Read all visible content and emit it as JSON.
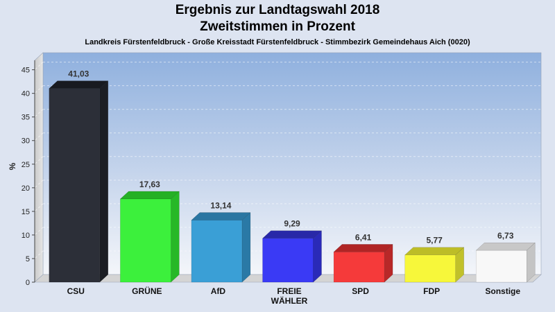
{
  "header": {
    "title": "Ergebnis zur Landtagswahl 2018",
    "subtitle": "Zweitstimmen in Prozent",
    "region": "Landkreis Fürstenfeldbruck - Große Kreisstadt Fürstenfeldbruck - Stimmbezirk Gemeindehaus Aich (0020)"
  },
  "chart_data": {
    "type": "bar",
    "title": "Ergebnis zur Landtagswahl 2018",
    "subtitle": "Zweitstimmen in Prozent",
    "xlabel": "",
    "ylabel": "%",
    "ylim": [
      0,
      47
    ],
    "yticks": [
      0,
      5,
      10,
      15,
      20,
      25,
      30,
      35,
      40,
      45
    ],
    "grid": true,
    "categories": [
      "CSU",
      "GRÜNE",
      "AfD",
      "FREIE WÄHLER",
      "SPD",
      "FDP",
      "Sonstige"
    ],
    "category_lines": [
      [
        "CSU"
      ],
      [
        "GRÜNE"
      ],
      [
        "AfD"
      ],
      [
        "FREIE",
        "WÄHLER"
      ],
      [
        "SPD"
      ],
      [
        "FDP"
      ],
      [
        "Sonstige"
      ]
    ],
    "values": [
      41.03,
      17.63,
      13.14,
      9.29,
      6.41,
      5.77,
      6.73
    ],
    "value_labels": [
      "41,03",
      "17,63",
      "13,14",
      "9,29",
      "6,41",
      "5,77",
      "6,73"
    ],
    "colors": [
      "#2c2f38",
      "#3cf03c",
      "#3a9fd6",
      "#3a3af5",
      "#f53a3a",
      "#f7f73a",
      "#f8f8f8"
    ],
    "side_colors": [
      "#1c1e24",
      "#27b827",
      "#2a79a6",
      "#2a2ab8",
      "#b82828",
      "#c1c12a",
      "#c4c4c4"
    ],
    "top_colors": [
      "#181a20",
      "#25b025",
      "#2a76a2",
      "#2828a8",
      "#b02525",
      "#bdbd27",
      "#c8c8c8"
    ]
  }
}
